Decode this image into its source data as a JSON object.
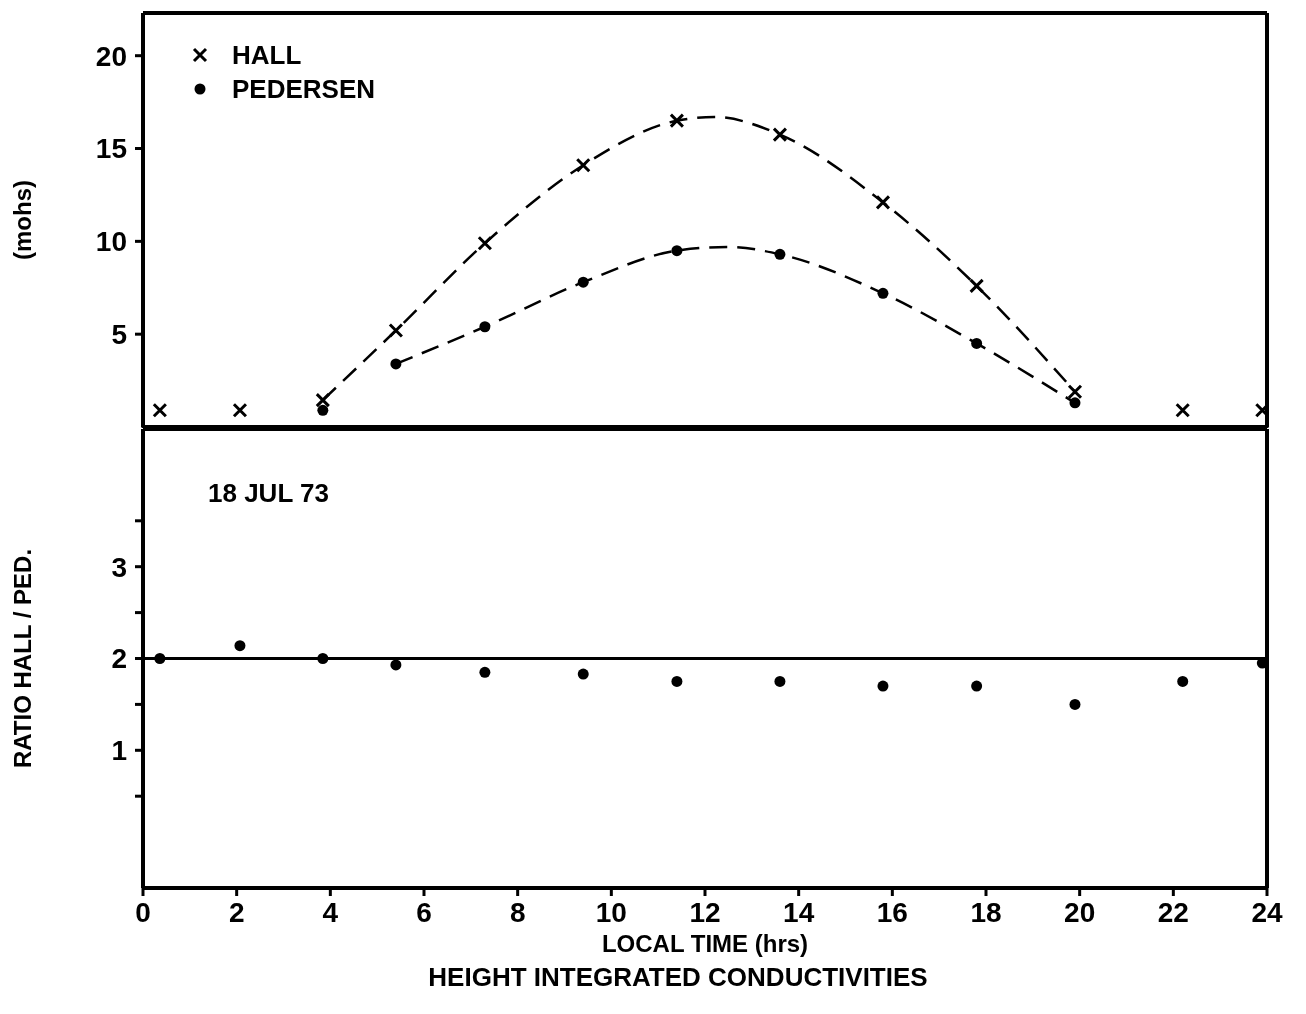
{
  "chart_data": [
    {
      "type": "scatter",
      "ylabel": "(mohs)",
      "xlim": [
        0,
        24
      ],
      "xticks": [
        0,
        2,
        4,
        6,
        8,
        10,
        12,
        14,
        16,
        18,
        20,
        22,
        24
      ],
      "ylim": [
        0,
        22.3
      ],
      "yticks": [
        5,
        10,
        15,
        20
      ],
      "tick_labels": "y",
      "grid": false,
      "legend": "top left",
      "series": [
        {
          "name": "HALL",
          "type": "scatter",
          "marker": "cross",
          "color": "#000000",
          "x": [
            0.36,
            2.07,
            3.84,
            5.4,
            7.3,
            9.4,
            11.4,
            13.6,
            15.8,
            17.8,
            19.9,
            22.2,
            23.9
          ],
          "values": [
            0.9,
            0.9,
            1.45,
            5.2,
            9.9,
            14.1,
            16.5,
            15.75,
            12.1,
            7.6,
            1.9,
            0.9,
            0.9
          ]
        },
        {
          "name": "PEDERSEN",
          "type": "scatter",
          "marker": "circle",
          "color": "#000000",
          "x": [
            3.84,
            5.4,
            7.3,
            9.4,
            11.4,
            13.6,
            15.8,
            17.8,
            19.9
          ],
          "values": [
            0.9,
            3.4,
            5.4,
            7.8,
            9.5,
            9.3,
            7.2,
            4.5,
            1.3
          ]
        },
        {
          "type": "line",
          "line_style": "dashed",
          "marker": "none",
          "color": "#000000",
          "x": [
            3.84,
            5.4,
            7.3,
            9.4,
            11.4,
            12.2,
            13.6,
            15.8,
            17.8,
            19.9
          ],
          "values": [
            1.45,
            5.2,
            9.9,
            14.1,
            16.5,
            16.7,
            15.75,
            12.1,
            7.6,
            1.9
          ]
        },
        {
          "type": "line",
          "line_style": "dashed",
          "marker": "none",
          "color": "#000000",
          "x": [
            5.4,
            7.3,
            9.4,
            11.4,
            12.5,
            13.6,
            15.8,
            17.8,
            19.9
          ],
          "values": [
            3.4,
            5.4,
            7.8,
            9.5,
            9.7,
            9.3,
            7.2,
            4.5,
            1.3
          ]
        }
      ]
    },
    {
      "type": "scatter",
      "xlabel": "LOCAL TIME (hrs)",
      "ylabel": "RATIO HALL / PED.",
      "xlim": [
        0,
        24
      ],
      "xticks": [
        0,
        2,
        4,
        6,
        8,
        10,
        12,
        14,
        16,
        18,
        20,
        22,
        24
      ],
      "ylim": [
        -0.5,
        4.5
      ],
      "yticks": [
        {
          "value": 0.5,
          "label": null
        },
        1,
        {
          "value": 1.5,
          "label": null
        },
        2,
        {
          "value": 2.5,
          "label": null
        },
        3,
        {
          "value": 3.5,
          "label": null
        }
      ],
      "grid": false,
      "marker": "circle",
      "x": [
        0.36,
        2.07,
        3.84,
        5.4,
        7.3,
        9.4,
        11.4,
        13.6,
        15.8,
        17.8,
        19.9,
        22.2,
        23.9
      ],
      "values": [
        2.0,
        2.14,
        2.0,
        1.93,
        1.85,
        1.83,
        1.75,
        1.75,
        1.7,
        1.7,
        1.5,
        1.75,
        1.95
      ],
      "color": "#000000",
      "ref_lines": [
        {
          "axis": "y",
          "value": 2,
          "color": "#000000"
        }
      ],
      "annotations": [
        "18 JUL 73",
        "HEIGHT INTEGRATED CONDUCTIVITIES"
      ]
    }
  ]
}
